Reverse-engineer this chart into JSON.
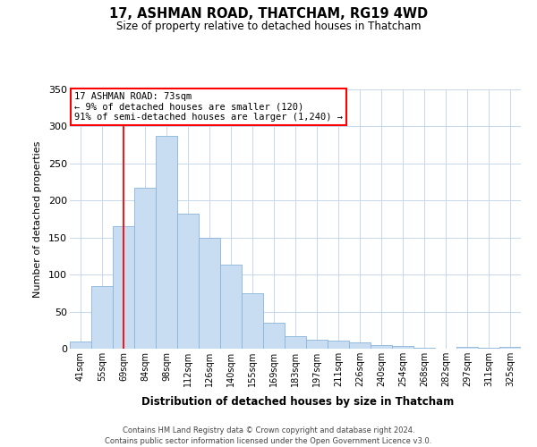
{
  "title": "17, ASHMAN ROAD, THATCHAM, RG19 4WD",
  "subtitle": "Size of property relative to detached houses in Thatcham",
  "xlabel": "Distribution of detached houses by size in Thatcham",
  "ylabel": "Number of detached properties",
  "bar_labels": [
    "41sqm",
    "55sqm",
    "69sqm",
    "84sqm",
    "98sqm",
    "112sqm",
    "126sqm",
    "140sqm",
    "155sqm",
    "169sqm",
    "183sqm",
    "197sqm",
    "211sqm",
    "226sqm",
    "240sqm",
    "254sqm",
    "268sqm",
    "282sqm",
    "297sqm",
    "311sqm",
    "325sqm"
  ],
  "bar_values": [
    10,
    84,
    165,
    217,
    287,
    182,
    150,
    113,
    75,
    35,
    17,
    12,
    11,
    9,
    5,
    4,
    1,
    0,
    2,
    1,
    2
  ],
  "bar_color": "#c9ddf2",
  "bar_edgecolor": "#8ab4d8",
  "background_color": "#ffffff",
  "grid_color": "#c8d8ec",
  "ylim": [
    0,
    350
  ],
  "yticks": [
    0,
    50,
    100,
    150,
    200,
    250,
    300,
    350
  ],
  "red_line_x": 2.0,
  "annotation_title": "17 ASHMAN ROAD: 73sqm",
  "annotation_line1": "← 9% of detached houses are smaller (120)",
  "annotation_line2": "91% of semi-detached houses are larger (1,240) →",
  "footer_line1": "Contains HM Land Registry data © Crown copyright and database right 2024.",
  "footer_line2": "Contains public sector information licensed under the Open Government Licence v3.0."
}
